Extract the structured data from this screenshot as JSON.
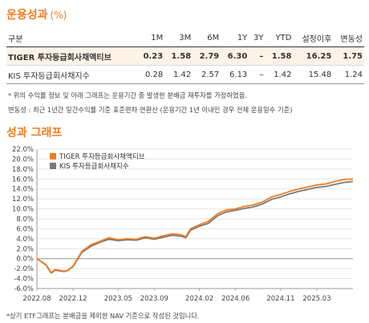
{
  "perf": {
    "title": "운용성과",
    "unit": "(%)",
    "headers": [
      "구분",
      "1M",
      "3M",
      "6M",
      "1Y",
      "3Y",
      "YTD",
      "설정이후",
      "변동성"
    ],
    "rows": [
      [
        "TIGER 투자등급회사채액티브",
        "0.23",
        "1.58",
        "2.79",
        "6.30",
        "–",
        "1.58",
        "16.25",
        "1.75"
      ],
      [
        "KIS 투자등급회사채지수",
        "0.28",
        "1.42",
        "2.57",
        "6.13",
        "–",
        "1.42",
        "15.48",
        "1.24"
      ]
    ],
    "note1": "* 위의 수익률 정보 및 아래 그래프는 운용기간 중 발생한 분배금 재투자를 가정하였음.",
    "note2": "변동성 : 최근 1년간 일간수익률 기준 표준편차 연환산 (운용기간 1년 이내인 경우 전체 운용일수 기준)"
  },
  "graph": {
    "title": "성과 그래프",
    "footnote": "*상기 ETF그래프는 분배금을 제외한 NAV 기준으로 작성된 것입니다."
  },
  "chart_data": {
    "type": "line",
    "y_tick_labels": [
      "22.0%",
      "20.0%",
      "18.0%",
      "16.0%",
      "14.0%",
      "12.0%",
      "10.0%",
      "8.0%",
      "6.0%",
      "4.0%",
      "2.0%",
      "0.0%",
      "-2.0%",
      "-4.0%",
      "-6.0%"
    ],
    "y_ticks": [
      22,
      20,
      18,
      16,
      14,
      12,
      10,
      8,
      6,
      4,
      2,
      0,
      -2,
      -4,
      -6
    ],
    "ylim": [
      -6,
      22
    ],
    "x_tick_labels": [
      "2022.08",
      "2022.12",
      "2023.05",
      "2023.09",
      "2024.02",
      "2024.06",
      "2024.11",
      "2025.03"
    ],
    "x_tick_pos": [
      0,
      4,
      9,
      13,
      18,
      22,
      27,
      31
    ],
    "xlim": [
      0,
      35
    ],
    "grid": true,
    "legend_position": "top-left",
    "series": [
      {
        "name": "TIGER 투자등급회사채액티브",
        "color": "#f07c1e",
        "x": [
          0,
          1,
          1.6,
          2,
          3,
          3.4,
          4,
          5,
          6,
          7,
          8,
          9,
          10,
          11,
          12,
          13,
          14,
          15,
          16,
          16.5,
          17,
          18,
          19,
          20,
          21,
          22,
          23,
          24,
          25,
          26,
          27,
          28,
          29,
          30,
          31,
          32,
          33,
          34,
          35
        ],
        "y": [
          0,
          -1.2,
          -2.8,
          -2.2,
          -2.5,
          -2.4,
          -1.5,
          1.5,
          2.8,
          3.5,
          4.2,
          3.8,
          4.0,
          3.9,
          4.4,
          4.1,
          4.6,
          5.0,
          4.8,
          4.4,
          6.0,
          6.8,
          7.5,
          9.0,
          9.8,
          10.0,
          10.5,
          10.8,
          11.4,
          12.4,
          12.9,
          13.5,
          14.0,
          14.4,
          14.8,
          15.0,
          15.5,
          15.9,
          16.0
        ]
      },
      {
        "name": "KIS 투자등급회사채지수",
        "color": "#7a7a7a",
        "x": [
          0,
          1,
          1.6,
          2,
          3,
          3.4,
          4,
          5,
          6,
          7,
          8,
          9,
          10,
          11,
          12,
          13,
          14,
          15,
          16,
          16.5,
          17,
          18,
          19,
          20,
          21,
          22,
          23,
          24,
          25,
          26,
          27,
          28,
          29,
          30,
          31,
          32,
          33,
          34,
          35
        ],
        "y": [
          0,
          -1.3,
          -2.9,
          -2.3,
          -2.6,
          -2.4,
          -1.6,
          1.3,
          2.5,
          3.3,
          3.9,
          3.6,
          3.8,
          3.7,
          4.2,
          3.9,
          4.3,
          4.7,
          4.5,
          4.2,
          5.7,
          6.5,
          7.1,
          8.6,
          9.4,
          9.7,
          10.1,
          10.4,
          11.0,
          11.9,
          12.4,
          13.0,
          13.5,
          13.9,
          14.3,
          14.5,
          14.9,
          15.3,
          15.5
        ]
      }
    ]
  }
}
